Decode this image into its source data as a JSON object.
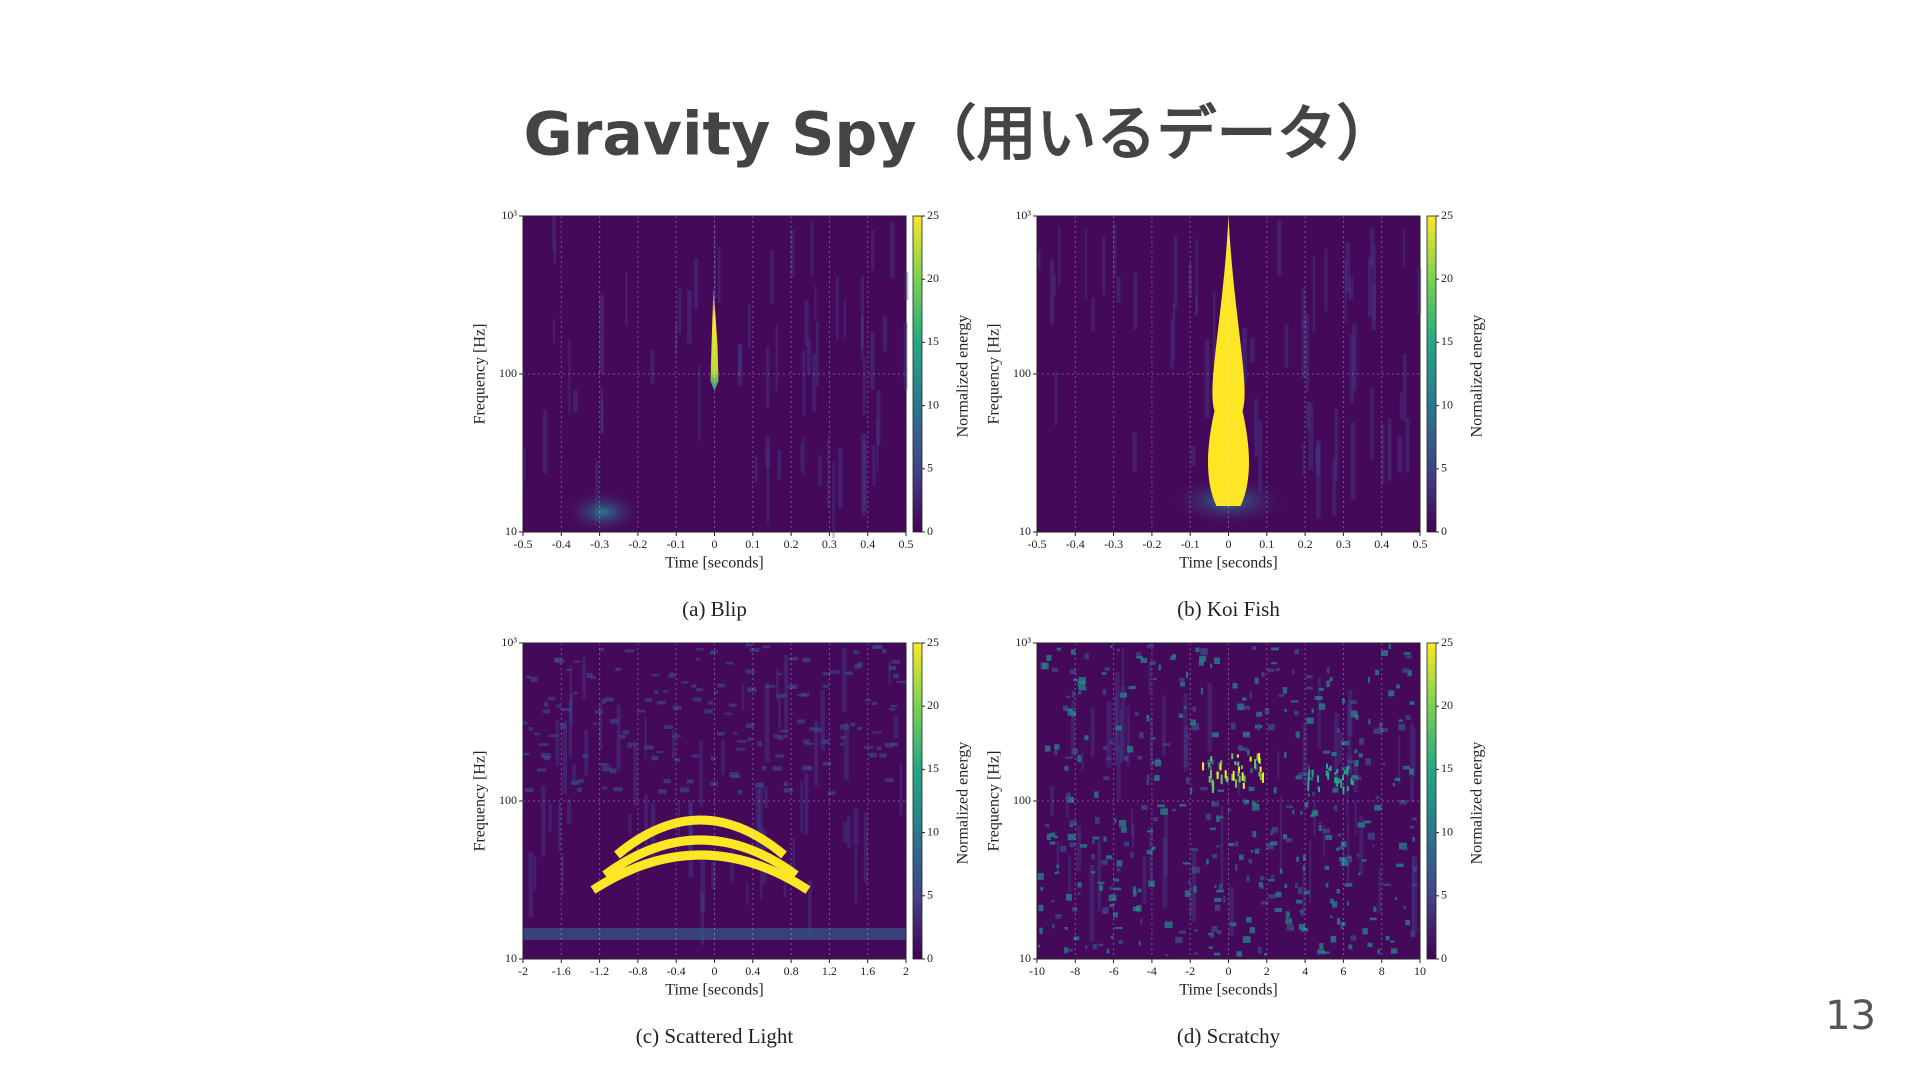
{
  "slide": {
    "title": "Gravity Spy（用いるデータ）",
    "page_number": "13"
  },
  "chart_data": [
    {
      "type": "spectrogram",
      "title": "(a) Blip",
      "xlabel": "Time [seconds]",
      "ylabel": "Frequency [Hz]",
      "colorbar_label": "Normalized energy",
      "colormap": "viridis",
      "grid": true,
      "ylog": true,
      "xlim": [
        -0.5,
        0.5
      ],
      "xticks": [
        -0.5,
        -0.4,
        -0.3,
        -0.2,
        -0.1,
        0,
        0.1,
        0.2,
        0.3,
        0.4,
        0.5
      ],
      "ylim": [
        10,
        1000
      ],
      "yticks": [
        10,
        100,
        {
          "value": 1000,
          "label": "10³"
        }
      ],
      "clim": [
        0,
        25
      ],
      "cticks": [
        0,
        5,
        10,
        15,
        20,
        25
      ]
    },
    {
      "type": "spectrogram",
      "title": "(b) Koi Fish",
      "xlabel": "Time [seconds]",
      "ylabel": "Frequency [Hz]",
      "colorbar_label": "Normalized energy",
      "colormap": "viridis",
      "grid": true,
      "ylog": true,
      "xlim": [
        -0.5,
        0.5
      ],
      "xticks": [
        -0.5,
        -0.4,
        -0.3,
        -0.2,
        -0.1,
        0,
        0.1,
        0.2,
        0.3,
        0.4,
        0.5
      ],
      "ylim": [
        10,
        1000
      ],
      "yticks": [
        10,
        100,
        {
          "value": 1000,
          "label": "10³"
        }
      ],
      "clim": [
        0,
        25
      ],
      "cticks": [
        0,
        5,
        10,
        15,
        20,
        25
      ]
    },
    {
      "type": "spectrogram",
      "title": "(c) Scattered Light",
      "xlabel": "Time [seconds]",
      "ylabel": "Frequency [Hz]",
      "colorbar_label": "Normalized energy",
      "colormap": "viridis",
      "grid": true,
      "ylog": true,
      "xlim": [
        -2,
        2
      ],
      "xticks": [
        -2,
        -1.6,
        -1.2,
        -0.8,
        -0.4,
        0,
        0.4,
        0.8,
        1.2,
        1.6,
        2
      ],
      "ylim": [
        10,
        1000
      ],
      "yticks": [
        10,
        100,
        {
          "value": 1000,
          "label": "10³"
        }
      ],
      "clim": [
        0,
        25
      ],
      "cticks": [
        0,
        5,
        10,
        15,
        20,
        25
      ]
    },
    {
      "type": "spectrogram",
      "title": "(d) Scratchy",
      "xlabel": "Time [seconds]",
      "ylabel": "Frequency [Hz]",
      "colorbar_label": "Normalized energy",
      "colormap": "viridis",
      "grid": true,
      "ylog": true,
      "xlim": [
        -10,
        10
      ],
      "xticks": [
        -10,
        -8,
        -6,
        -4,
        -2,
        0,
        2,
        4,
        6,
        8,
        10
      ],
      "ylim": [
        10,
        1000
      ],
      "yticks": [
        10,
        100,
        {
          "value": 1000,
          "label": "10³"
        }
      ],
      "clim": [
        0,
        25
      ],
      "cticks": [
        0,
        5,
        10,
        15,
        20,
        25
      ]
    }
  ]
}
